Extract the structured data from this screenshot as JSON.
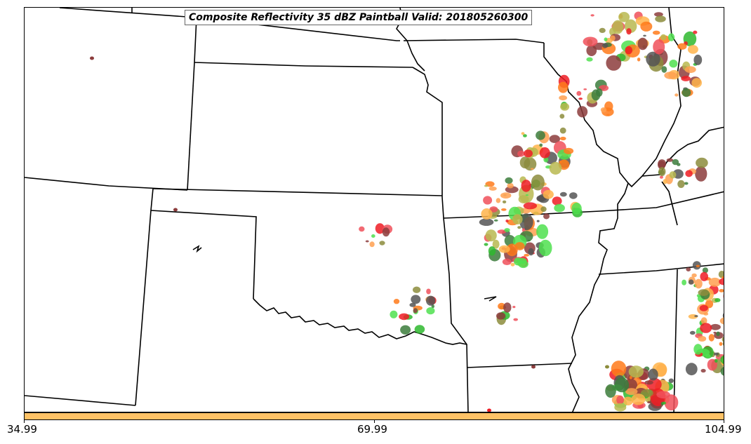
{
  "title": "Composite Reflectivity 35 dBZ Paintball Valid: 201805260300",
  "colorbar": {
    "color": "#FFC266",
    "ticks": [
      "34.99",
      "69.99",
      "104.99"
    ]
  },
  "palette": {
    "red": "#EE1C25",
    "lightred": "#F0505A",
    "orange": "#FF7A1A",
    "lightorange": "#FFA050",
    "peach": "#FFB44B",
    "olive": "#8C8C3C",
    "yellowolive": "#B8B850",
    "green": "#2EB82E",
    "lightgreen": "#4FE04F",
    "darkgreen": "#3C7D3C",
    "maroon": "#8C3C3C",
    "gray": "#555555"
  },
  "map": {
    "features": [
      "state-borders",
      "mississippi-river",
      "reflectivity-paintball-blobs"
    ],
    "region": "Southern Plains / Mid-South"
  }
}
